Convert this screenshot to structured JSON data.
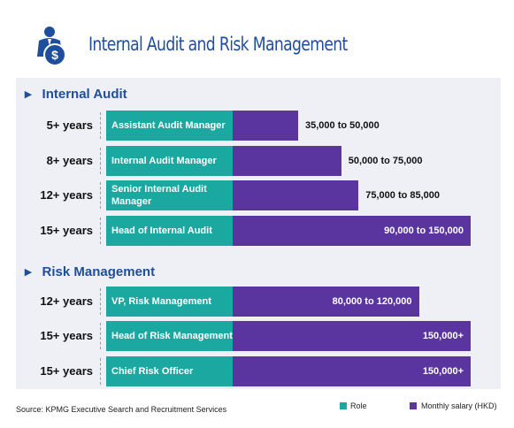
{
  "title": "Internal Audit and Risk Management",
  "sections": [
    {
      "name": "Internal Audit",
      "rows": [
        {
          "experience": "5+ years",
          "role": "Assistant Audit Manager",
          "salary": "35,000 to 50,000"
        },
        {
          "experience": "8+ years",
          "role": "Internal Audit Manager",
          "salary": "50,000 to 75,000"
        },
        {
          "experience": "12+ years",
          "role": "Senior Internal Audit Manager",
          "salary": "75,000 to 85,000"
        },
        {
          "experience": "15+ years",
          "role": "Head of Internal Audit",
          "salary": "90,000 to 150,000"
        }
      ]
    },
    {
      "name": "Risk Management",
      "rows": [
        {
          "experience": "12+ years",
          "role": "VP, Risk Management",
          "salary": "80,000 to 120,000"
        },
        {
          "experience": "15+ years",
          "role": "Head of Risk Management",
          "salary": "150,000+"
        },
        {
          "experience": "15+ years",
          "role": "Chief Risk Officer",
          "salary": "150,000+"
        }
      ]
    }
  ],
  "legend": [
    "Role",
    "Monthly salary (HKD)"
  ],
  "source": "Source: KPMG Executive Search and Recruitment Services"
}
